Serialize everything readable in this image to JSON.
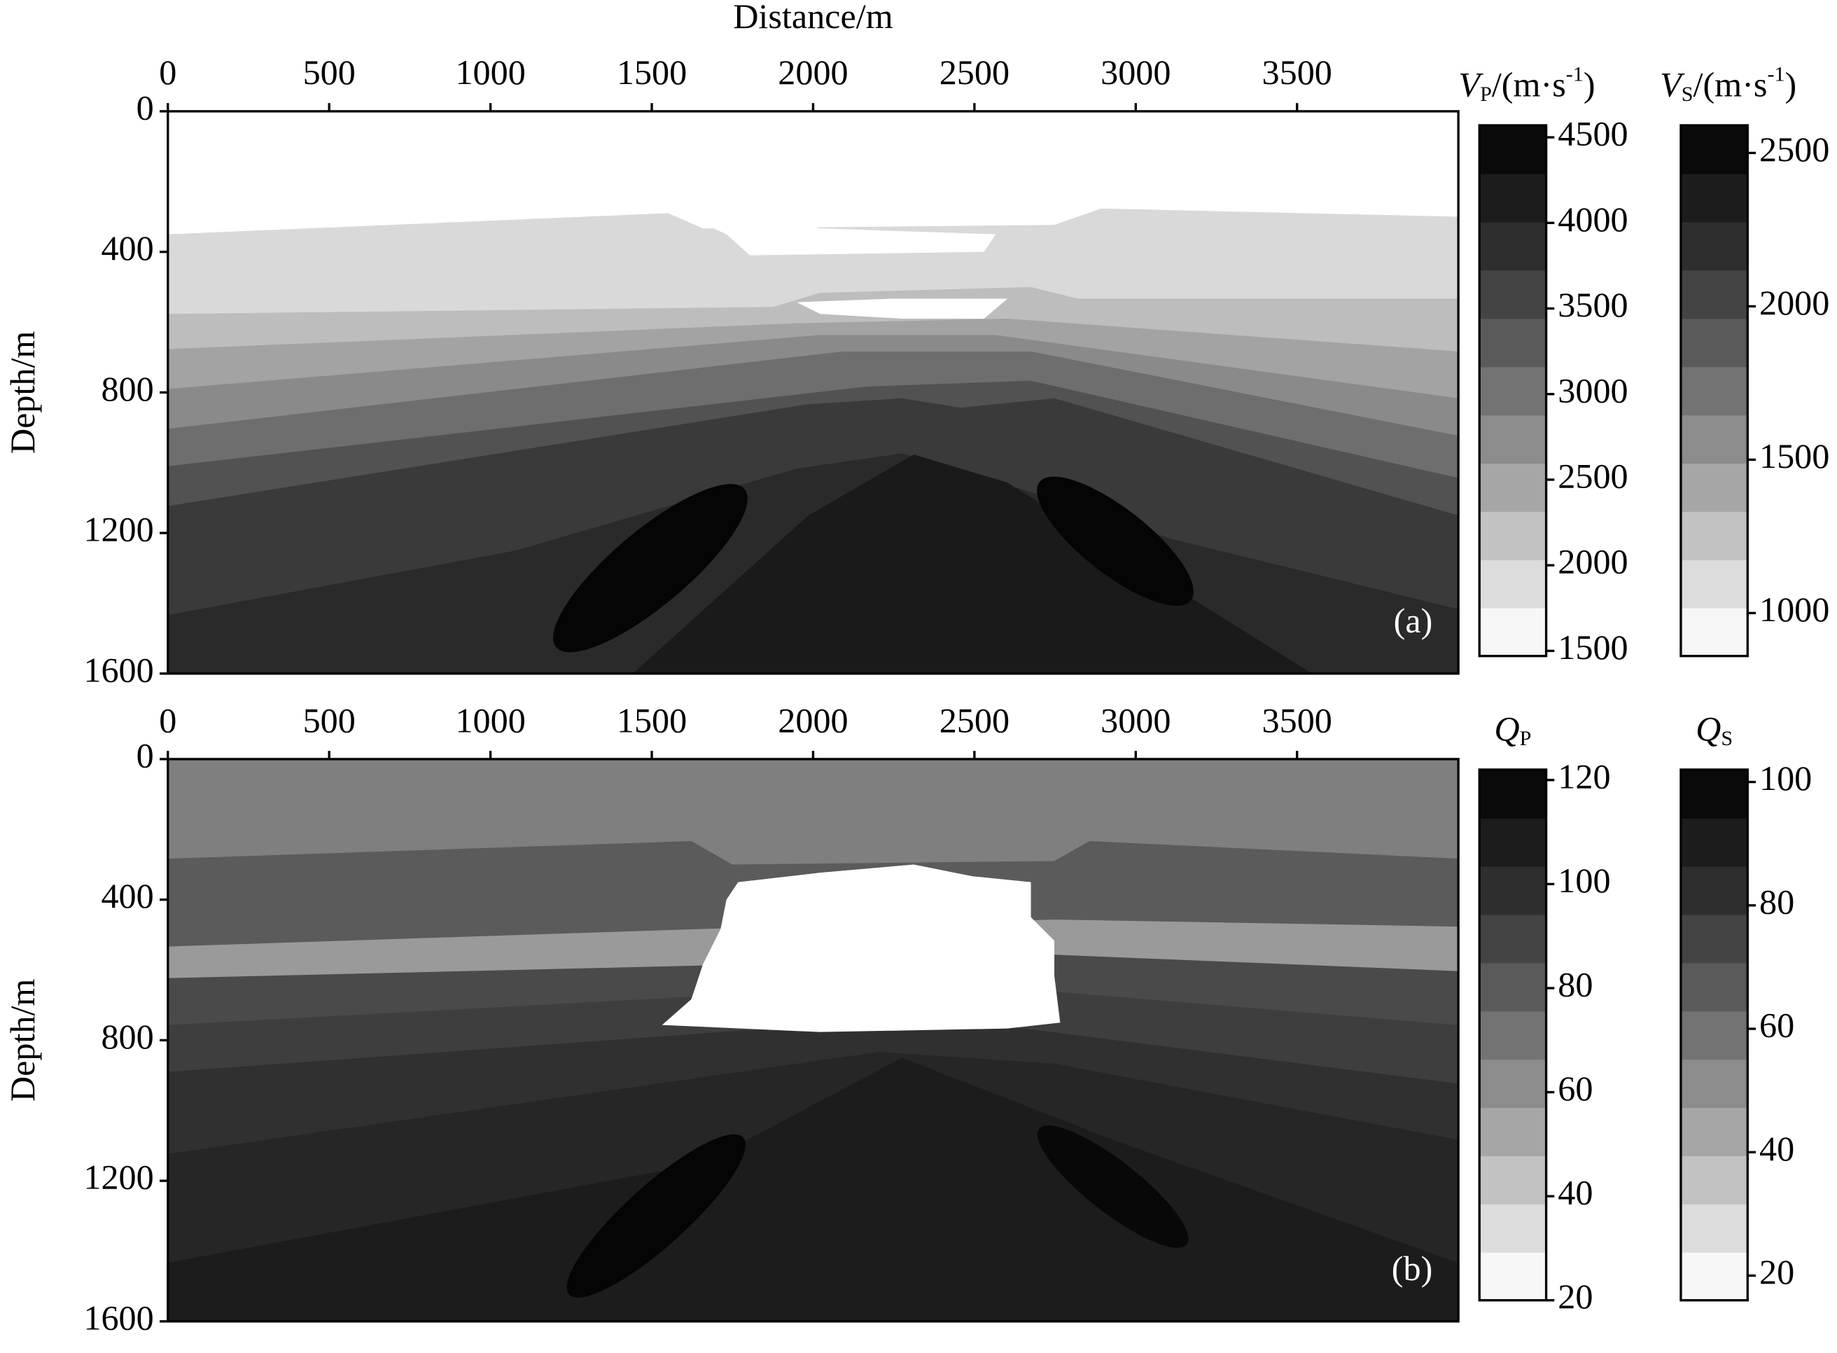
{
  "chart_data": [
    {
      "type": "image",
      "x_label": "Distance/m",
      "y_label": "Depth/m",
      "panel_label": "(a)",
      "xlim": [
        0,
        4000
      ],
      "xticks": [
        0,
        500,
        1000,
        1500,
        2000,
        2500,
        3000,
        3500
      ],
      "ylim": [
        0,
        1600
      ],
      "yticks": [
        0,
        400,
        800,
        1200,
        1600
      ],
      "colorbars": [
        {
          "label": [
            "V",
            "P",
            "/(m·s",
            "-1",
            ")"
          ],
          "lim": [
            1470,
            4570
          ],
          "ticks": [
            1500,
            2000,
            2500,
            3000,
            3500,
            4000,
            4500
          ],
          "colors": [
            "#f7f7f7",
            "#dcdcdc",
            "#c2c2c2",
            "#a6a6a6",
            "#8c8c8c",
            "#737373",
            "#5a5a5a",
            "#444444",
            "#2e2e2e",
            "#1c1c1c",
            "#0a0a0a"
          ]
        },
        {
          "label": [
            "V",
            "S",
            "/(m·s",
            "-1",
            ")"
          ],
          "lim": [
            860,
            2590
          ],
          "ticks": [
            1000,
            1500,
            2000,
            2500
          ],
          "colors": [
            "#f7f7f7",
            "#dcdcdc",
            "#c2c2c2",
            "#a6a6a6",
            "#8c8c8c",
            "#737373",
            "#5a5a5a",
            "#444444",
            "#2e2e2e",
            "#1c1c1c",
            "#0a0a0a"
          ]
        }
      ]
    },
    {
      "type": "image",
      "y_label": "Depth/m",
      "panel_label": "(b)",
      "xlim": [
        0,
        4000
      ],
      "xticks": [
        0,
        500,
        1000,
        1500,
        2000,
        2500,
        3000,
        3500
      ],
      "ylim": [
        0,
        1600
      ],
      "yticks": [
        0,
        400,
        800,
        1200,
        1600
      ],
      "colorbars": [
        {
          "label": [
            "Q",
            "P"
          ],
          "lim": [
            20,
            122
          ],
          "ticks": [
            20,
            40,
            60,
            80,
            100,
            120
          ],
          "colors": [
            "#f7f7f7",
            "#dcdcdc",
            "#c2c2c2",
            "#a6a6a6",
            "#8c8c8c",
            "#737373",
            "#5a5a5a",
            "#444444",
            "#2e2e2e",
            "#1c1c1c",
            "#0a0a0a"
          ]
        },
        {
          "label": [
            "Q",
            "S"
          ],
          "lim": [
            16,
            102
          ],
          "ticks": [
            20,
            40,
            60,
            80,
            100
          ],
          "colors": [
            "#f7f7f7",
            "#dcdcdc",
            "#c2c2c2",
            "#a6a6a6",
            "#8c8c8c",
            "#737373",
            "#5a5a5a",
            "#444444",
            "#2e2e2e",
            "#1c1c1c",
            "#0a0a0a"
          ]
        }
      ]
    }
  ]
}
